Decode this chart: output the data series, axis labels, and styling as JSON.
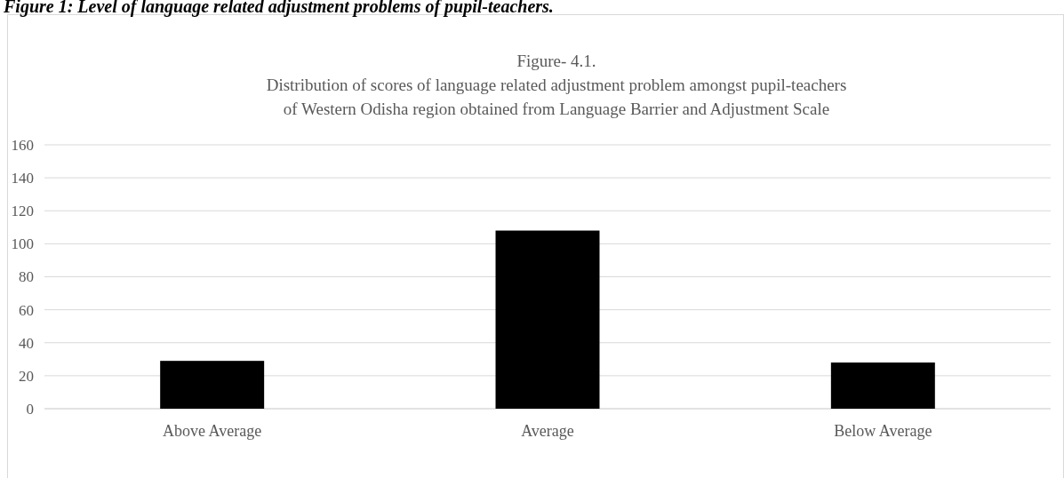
{
  "chart_data": {
    "type": "bar",
    "title": "Figure 1: Level of language related adjustment problems of pupil-teachers.",
    "subtitle": "Figure- 4.1.\nDistribution of scores of language related adjustment problem amongst pupil-teachers\nof Western Odisha region obtained from Language Barrier and Adjustment Scale",
    "categories": [
      "Above Average",
      "Average",
      "Below Average"
    ],
    "values": [
      29,
      108,
      28
    ],
    "color": "#000000",
    "ylim": [
      0,
      160
    ],
    "yticks": [
      0,
      20,
      40,
      60,
      80,
      100,
      120,
      140,
      160
    ],
    "grid": "y"
  }
}
